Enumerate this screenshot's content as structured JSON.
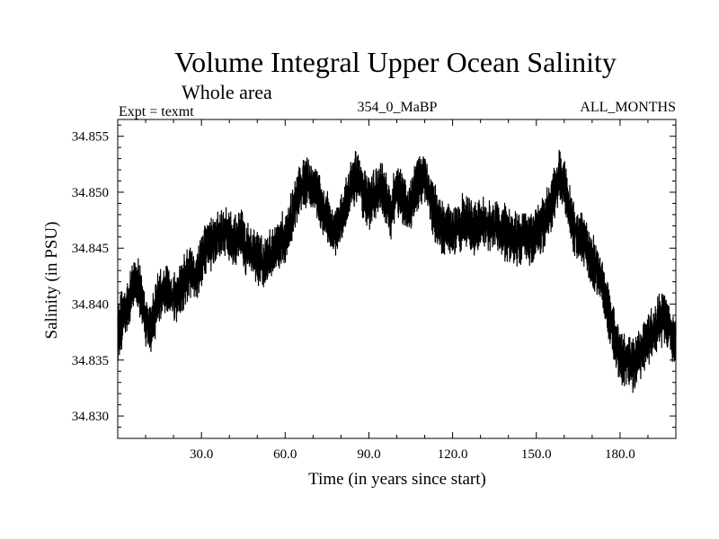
{
  "chart_data": {
    "type": "line",
    "title": "Volume Integral Upper Ocean Salinity",
    "subtitle": "Whole area",
    "left_header": "Expt = texmt",
    "center_header": "354_0_MaBP",
    "right_header": "ALL_MONTHS",
    "xlabel": "Time (in years since start)",
    "ylabel": "Salinity (in PSU)",
    "xlim": [
      0,
      200
    ],
    "ylim": [
      34.828,
      34.8565
    ],
    "x_ticks": [
      "30.0",
      "60.0",
      "90.0",
      "120.0",
      "150.0",
      "180.0"
    ],
    "x_tick_values": [
      30,
      60,
      90,
      120,
      150,
      180
    ],
    "y_ticks": [
      "34.830",
      "34.835",
      "34.840",
      "34.845",
      "34.850",
      "34.855"
    ],
    "y_tick_values": [
      34.83,
      34.835,
      34.84,
      34.845,
      34.85,
      34.855
    ],
    "grid": false,
    "series": [
      {
        "name": "Salinity",
        "color": "#000000",
        "x": [
          0,
          2,
          4,
          6,
          8,
          10,
          12,
          14,
          16,
          18,
          20,
          22,
          24,
          26,
          28,
          30,
          32,
          34,
          36,
          38,
          40,
          42,
          44,
          46,
          48,
          50,
          52,
          54,
          56,
          58,
          60,
          62,
          64,
          66,
          68,
          70,
          72,
          74,
          76,
          78,
          80,
          82,
          84,
          86,
          88,
          90,
          92,
          94,
          96,
          98,
          100,
          102,
          104,
          106,
          108,
          110,
          112,
          114,
          116,
          118,
          120,
          122,
          124,
          126,
          128,
          130,
          132,
          134,
          136,
          138,
          140,
          142,
          144,
          146,
          148,
          150,
          152,
          154,
          156,
          158,
          160,
          162,
          164,
          166,
          168,
          170,
          172,
          174,
          176,
          178,
          180,
          182,
          184,
          186,
          188,
          190,
          192,
          194,
          196,
          198,
          200
        ],
        "values": [
          34.8375,
          34.839,
          34.8405,
          34.842,
          34.8412,
          34.8385,
          34.8378,
          34.84,
          34.841,
          34.8415,
          34.8405,
          34.841,
          34.842,
          34.843,
          34.8425,
          34.844,
          34.845,
          34.8455,
          34.846,
          34.8465,
          34.8462,
          34.8455,
          34.846,
          34.845,
          34.8445,
          34.844,
          34.8435,
          34.844,
          34.845,
          34.8455,
          34.846,
          34.8475,
          34.849,
          34.8505,
          34.851,
          34.8505,
          34.8495,
          34.848,
          34.847,
          34.8465,
          34.8475,
          34.849,
          34.851,
          34.8515,
          34.85,
          34.849,
          34.85,
          34.8505,
          34.8495,
          34.848,
          34.8505,
          34.8495,
          34.848,
          34.85,
          34.851,
          34.8515,
          34.8495,
          34.848,
          34.847,
          34.8465,
          34.8465,
          34.847,
          34.8475,
          34.847,
          34.8465,
          34.847,
          34.8472,
          34.847,
          34.8468,
          34.8465,
          34.8462,
          34.8458,
          34.846,
          34.8465,
          34.8458,
          34.8465,
          34.847,
          34.848,
          34.8495,
          34.8515,
          34.851,
          34.848,
          34.8465,
          34.846,
          34.845,
          34.844,
          34.843,
          34.8415,
          34.839,
          34.837,
          34.8355,
          34.835,
          34.8345,
          34.835,
          34.836,
          34.837,
          34.8375,
          34.8385,
          34.839,
          34.8375,
          34.8365
        ],
        "noise_amplitude": 0.0032
      }
    ]
  }
}
